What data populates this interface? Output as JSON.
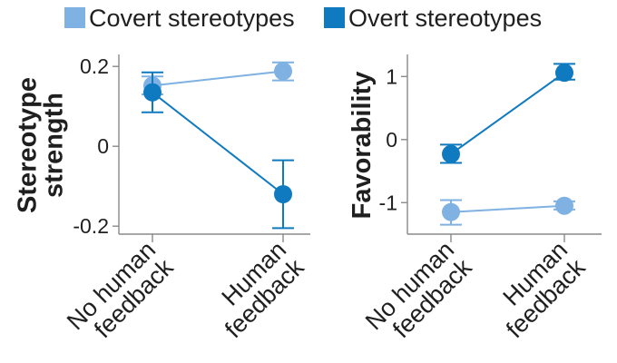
{
  "legend": [
    {
      "label": "Covert stereotypes",
      "color": "#7fb2e2"
    },
    {
      "label": "Overt stereotypes",
      "color": "#0f7ac0"
    }
  ],
  "chart_data": [
    {
      "type": "scatter",
      "categories": [
        "No human feedback",
        "Human feedback"
      ],
      "category_lines": [
        [
          "No human",
          "feedback"
        ],
        [
          "Human",
          "feedback"
        ]
      ],
      "ylabel_lines": [
        "Stereotype",
        "strength"
      ],
      "ylim": [
        -0.22,
        0.23
      ],
      "yticks": [
        0.2,
        0,
        -0.2
      ],
      "ytick_labels": [
        "0.2",
        "0",
        "-0.2"
      ],
      "series": [
        {
          "name": "Covert stereotypes",
          "color": "#7fb2e2",
          "values": [
            0.152,
            0.188
          ],
          "err_low": [
            0.13,
            0.165
          ],
          "err_high": [
            0.175,
            0.21
          ]
        },
        {
          "name": "Overt stereotypes",
          "color": "#0f7ac0",
          "values": [
            0.135,
            -0.12
          ],
          "err_low": [
            0.085,
            -0.205
          ],
          "err_high": [
            0.185,
            -0.035
          ]
        }
      ],
      "legend_position": "top"
    },
    {
      "type": "scatter",
      "categories": [
        "No human feedback",
        "Human feedback"
      ],
      "category_lines": [
        [
          "No human",
          "feedback"
        ],
        [
          "Human",
          "feedback"
        ]
      ],
      "ylabel_lines": [
        "Favorability"
      ],
      "ylim": [
        -1.5,
        1.35
      ],
      "yticks": [
        1,
        0,
        -1
      ],
      "ytick_labels": [
        "1",
        "0",
        "-1"
      ],
      "series": [
        {
          "name": "Covert stereotypes",
          "color": "#7fb2e2",
          "values": [
            -1.15,
            -1.05
          ],
          "err_low": [
            -1.35,
            -1.11
          ],
          "err_high": [
            -0.96,
            -0.98
          ]
        },
        {
          "name": "Overt stereotypes",
          "color": "#0f7ac0",
          "values": [
            -0.23,
            1.06
          ],
          "err_low": [
            -0.37,
            0.95
          ],
          "err_high": [
            -0.08,
            1.2
          ]
        }
      ],
      "legend_position": "top"
    }
  ]
}
